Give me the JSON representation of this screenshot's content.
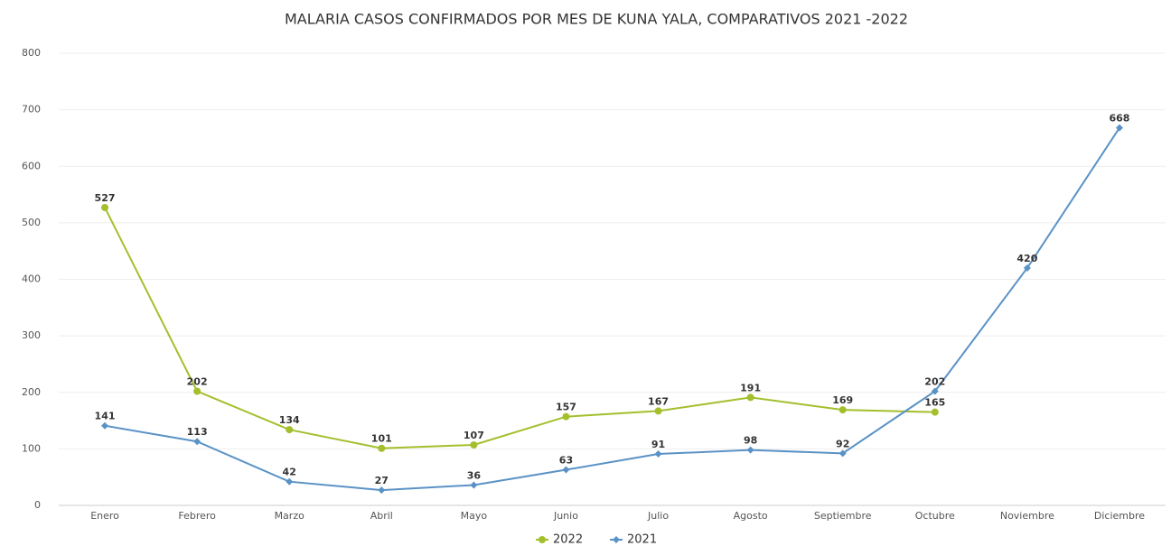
{
  "chart_data": {
    "type": "line",
    "title": "MALARIA CASOS CONFIRMADOS POR MES DE KUNA YALA, COMPARATIVOS 2021 -2022",
    "categories": [
      "Enero",
      "Febrero",
      "Marzo",
      "Abril",
      "Mayo",
      "Junio",
      "Julio",
      "Agosto",
      "Septiembre",
      "Octubre",
      "Noviembre",
      "Diciembre"
    ],
    "series": [
      {
        "name": "2022",
        "color": "#a3bf2c",
        "marker": "circle",
        "values": [
          527,
          202,
          134,
          101,
          107,
          157,
          167,
          191,
          169,
          165,
          null,
          null
        ]
      },
      {
        "name": "2021",
        "color": "#5a92c6",
        "marker": "diamond",
        "values": [
          141,
          113,
          42,
          27,
          36,
          63,
          91,
          98,
          92,
          202,
          420,
          668
        ]
      }
    ],
    "ylim": [
      0,
      800
    ],
    "yticks": [
      0,
      100,
      200,
      300,
      400,
      500,
      600,
      700,
      800
    ],
    "grid": true,
    "legend": "bottom"
  }
}
